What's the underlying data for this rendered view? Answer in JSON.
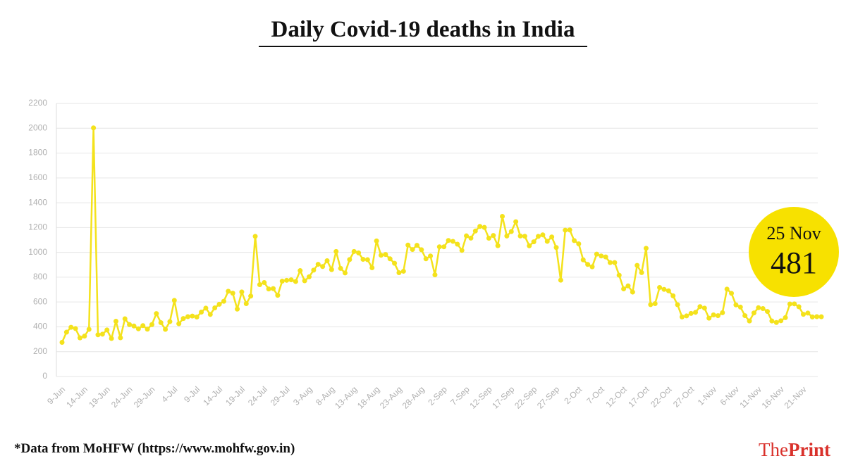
{
  "chart_data": {
    "type": "line",
    "title": "Daily Covid-19 deaths in India",
    "categories": [
      "9-Jun",
      null,
      null,
      null,
      null,
      "14-Jun",
      null,
      null,
      null,
      null,
      "19-Jun",
      null,
      null,
      null,
      null,
      "24-Jun",
      null,
      null,
      null,
      null,
      "29-Jun",
      null,
      null,
      null,
      null,
      "4-Jul",
      null,
      null,
      null,
      null,
      "9-Jul",
      null,
      null,
      null,
      null,
      "14-Jul",
      null,
      null,
      null,
      null,
      "19-Jul",
      null,
      null,
      null,
      null,
      "24-Jul",
      null,
      null,
      null,
      null,
      "29-Jul",
      null,
      null,
      null,
      null,
      "3-Aug",
      null,
      null,
      null,
      null,
      "8-Aug",
      null,
      null,
      null,
      null,
      "13-Aug",
      null,
      null,
      null,
      null,
      "18-Aug",
      null,
      null,
      null,
      null,
      "23-Aug",
      null,
      null,
      null,
      null,
      "28-Aug",
      null,
      null,
      null,
      null,
      "2-Sep",
      null,
      null,
      null,
      null,
      "7-Sep",
      null,
      null,
      null,
      null,
      "12-Sep",
      null,
      null,
      null,
      null,
      "17-Sep",
      null,
      null,
      null,
      null,
      "22-Sep",
      null,
      null,
      null,
      null,
      "27-Sep",
      null,
      null,
      null,
      null,
      "2-Oct",
      null,
      null,
      null,
      null,
      "7-Oct",
      null,
      null,
      null,
      null,
      "12-Oct",
      null,
      null,
      null,
      null,
      "17-Oct",
      null,
      null,
      null,
      null,
      "22-Oct",
      null,
      null,
      null,
      null,
      "27-Oct",
      null,
      null,
      null,
      null,
      "1-Nov",
      null,
      null,
      null,
      null,
      "6-Nov",
      null,
      null,
      null,
      null,
      "11-Nov",
      null,
      null,
      null,
      null,
      "16-Nov",
      null,
      null,
      null,
      null,
      "21-Nov",
      null,
      null,
      null,
      null
    ],
    "values": [
      275,
      357,
      396,
      386,
      311,
      325,
      380,
      2003,
      336,
      341,
      375,
      306,
      445,
      312,
      465,
      418,
      407,
      384,
      410,
      381,
      418,
      507,
      434,
      380,
      442,
      613,
      425,
      467,
      482,
      487,
      479,
      519,
      551,
      500,
      553,
      582,
      606,
      687,
      671,
      543,
      681,
      587,
      648,
      1129,
      740,
      757,
      705,
      708,
      654,
      768,
      775,
      779,
      765,
      853,
      771,
      803,
      857,
      904,
      886,
      933,
      861,
      1007,
      871,
      834,
      942,
      1007,
      996,
      944,
      941,
      876,
      1092,
      977,
      983,
      948,
      912,
      836,
      848,
      1059,
      1023,
      1057,
      1021,
      948,
      971,
      819,
      1045,
      1045,
      1096,
      1089,
      1066,
      1016,
      1133,
      1115,
      1172,
      1209,
      1201,
      1114,
      1136,
      1054,
      1290,
      1132,
      1168,
      1247,
      1132,
      1130,
      1053,
      1085,
      1129,
      1141,
      1089,
      1124,
      1039,
      776,
      1179,
      1181,
      1095,
      1069,
      940,
      903,
      884,
      986,
      971,
      963,
      918,
      918,
      816,
      706,
      730,
      680,
      895,
      837,
      1033,
      579,
      587,
      717,
      702,
      690,
      650,
      578,
      480,
      488,
      508,
      517,
      563,
      551,
      470,
      496,
      490,
      514,
      704,
      670,
      577,
      559,
      490,
      447,
      512,
      554,
      547,
      524,
      447,
      435,
      449,
      474,
      584,
      585,
      562,
      501,
      511,
      480,
      482,
      481
    ],
    "color": "#f4e21c",
    "ylim": [
      0,
      2200
    ],
    "yticks": [
      0,
      200,
      400,
      600,
      800,
      1000,
      1200,
      1400,
      1600,
      1800,
      2000,
      2200
    ],
    "grid": true,
    "annotation": {
      "date": "25 Nov",
      "value": 481,
      "color": "#f7e100"
    },
    "source": "*Data from MoHFW (https://www.mohfw.gov.in)"
  },
  "brand": {
    "prefix": "The",
    "name": "Print"
  }
}
